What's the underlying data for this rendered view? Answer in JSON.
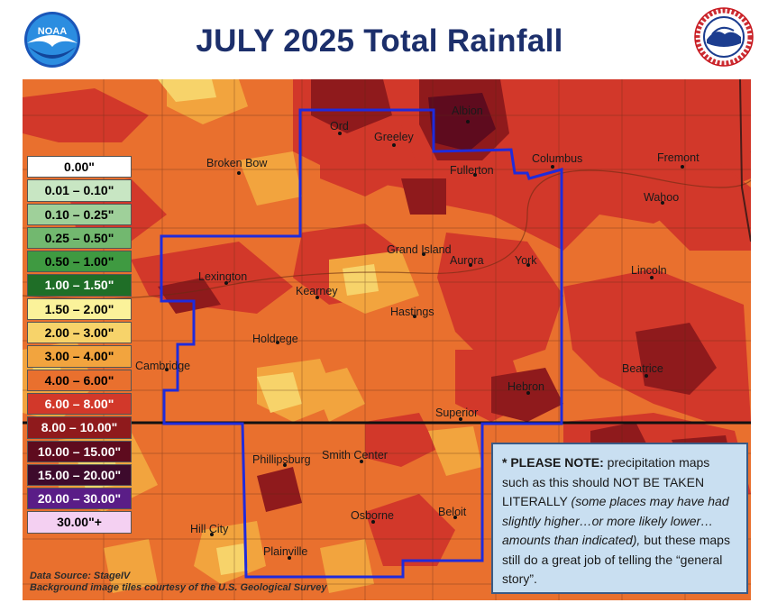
{
  "header": {
    "title": "JULY 2025 Total Rainfall",
    "left_logo": {
      "name": "noaa-logo-icon",
      "text": "NOAA"
    },
    "right_logo": {
      "name": "nws-logo-icon",
      "text": "NATIONAL WEATHER SERVICE"
    }
  },
  "colors": {
    "title": "#1c2f6b",
    "outline": "#1f2bdc",
    "note_bg": "#c9dff1"
  },
  "legend": [
    {
      "label": "0.00\"",
      "color": "#ffffff",
      "text_color": "#000000"
    },
    {
      "label": "0.01 – 0.10\"",
      "color": "#c8e6c3",
      "text_color": "#000000"
    },
    {
      "label": "0.10 – 0.25\"",
      "color": "#9fd09a",
      "text_color": "#000000"
    },
    {
      "label": "0.25 – 0.50\"",
      "color": "#72b86f",
      "text_color": "#000000"
    },
    {
      "label": "0.50 – 1.00\"",
      "color": "#3f9a41",
      "text_color": "#000000"
    },
    {
      "label": "1.00 – 1.50\"",
      "color": "#1f6e27",
      "text_color": "#ffffff"
    },
    {
      "label": "1.50 – 2.00\"",
      "color": "#fbf29a",
      "text_color": "#000000"
    },
    {
      "label": "2.00 – 3.00\"",
      "color": "#f7d36a",
      "text_color": "#000000"
    },
    {
      "label": "3.00 – 4.00\"",
      "color": "#f2a43e",
      "text_color": "#000000"
    },
    {
      "label": "4.00 – 6.00\"",
      "color": "#e9702e",
      "text_color": "#000000"
    },
    {
      "label": "6.00 – 8.00\"",
      "color": "#d2382a",
      "text_color": "#ffffff"
    },
    {
      "label": "8.00 – 10.00\"",
      "color": "#8f1a1c",
      "text_color": "#ffffff"
    },
    {
      "label": "10.00 – 15.00\"",
      "color": "#5e0b1e",
      "text_color": "#ffffff"
    },
    {
      "label": "15.00 – 20.00\"",
      "color": "#3d0a2c",
      "text_color": "#ffffff"
    },
    {
      "label": "20.00 – 30.00\"",
      "color": "#5a1d87",
      "text_color": "#ffffff"
    },
    {
      "label": "30.00\"+",
      "color": "#f4d0f2",
      "text_color": "#000000"
    }
  ],
  "cities": [
    {
      "name": "Albion"
    },
    {
      "name": "Ord"
    },
    {
      "name": "Greeley"
    },
    {
      "name": "Broken Bow"
    },
    {
      "name": "Fullerton"
    },
    {
      "name": "Columbus"
    },
    {
      "name": "Fremont"
    },
    {
      "name": "Wahoo"
    },
    {
      "name": "Grand Island"
    },
    {
      "name": "Aurora"
    },
    {
      "name": "York"
    },
    {
      "name": "Lincoln"
    },
    {
      "name": "Lexington"
    },
    {
      "name": "Kearney"
    },
    {
      "name": "Hastings"
    },
    {
      "name": "Holdrege"
    },
    {
      "name": "Cambridge"
    },
    {
      "name": "Beatrice"
    },
    {
      "name": "Hebron"
    },
    {
      "name": "Superior"
    },
    {
      "name": "Phillipsburg"
    },
    {
      "name": "Smith Center"
    },
    {
      "name": "Beloit"
    },
    {
      "name": "Osborne"
    },
    {
      "name": "Hill City"
    },
    {
      "name": "Plainville"
    }
  ],
  "note": {
    "bold": "* PLEASE NOTE:",
    "part1": " precipitation maps such as this should NOT BE TAKEN LITERALLY ",
    "italic": "(some places may have had slightly higher…or more likely lower… amounts than indicated),",
    "part2": " but these maps still do a great job of telling the “general story”."
  },
  "source": {
    "line1": "Data Source: StageIV",
    "line2": "Background image tiles courtesy of the U.S. Geological Survey"
  }
}
